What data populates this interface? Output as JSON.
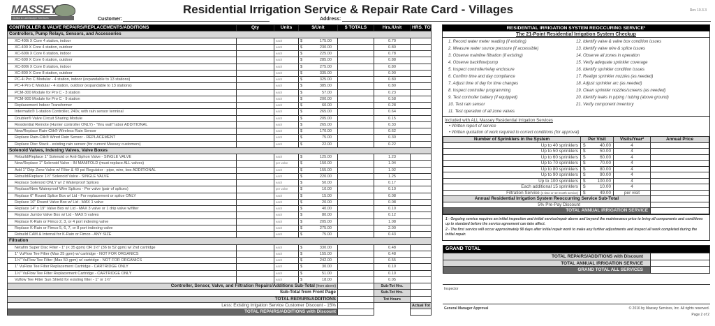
{
  "header": {
    "logo_text": "MASSEY",
    "logo_tagline": "Grass & Landscape Services",
    "title": "Residential Irrigation Service & Repair Rate Card - Villages",
    "revision": "Rev 10.3.3",
    "customer_label": "Customer:",
    "address_label": "Address:"
  },
  "repairs": {
    "columns": [
      "CONTROLLER & VALVE REPAIRS/REPLACEMENTS/ADDITIONS",
      "Qty",
      "Units",
      "$/Unit",
      "$ TOTALS",
      "Hrs./Unit",
      "HRS. TOTALS"
    ],
    "sections": [
      {
        "title": "Controllers, Pump Relays, Sensors, and Accessories",
        "items": [
          {
            "desc": "XC-400i  X Core 4 station, indoor",
            "units": "each",
            "price": "175.00",
            "hrs": "0.70"
          },
          {
            "desc": "XC-400  X Core 4 station, outdoor",
            "units": "each",
            "price": "230.00",
            "hrs": "0.80"
          },
          {
            "desc": "XC-600i  X Core 6 station, indoor",
            "units": "each",
            "price": "225.00",
            "hrs": "0.78"
          },
          {
            "desc": "XC-600  X Core 6 station, outdoor",
            "units": "each",
            "price": "285.00",
            "hrs": "0.88"
          },
          {
            "desc": "XC-800i  X Core 8 station, indoor",
            "units": "each",
            "price": "275.00",
            "hrs": "0.80"
          },
          {
            "desc": "XC-800  X Core 8 station, outdoor",
            "units": "each",
            "price": "335.00",
            "hrs": "0.90"
          },
          {
            "desc": "PC-4i Pro C Modular - 4 station, indoor (expandable to 13 stations)",
            "units": "each",
            "price": "325.00",
            "hrs": "0.80"
          },
          {
            "desc": "PC-4 Pro C Modular - 4 station, outdoor (expandable to 13 stations)",
            "units": "each",
            "price": "385.00",
            "hrs": "0.80"
          },
          {
            "desc": "PCM-300  Module for Pro C - 3 station",
            "units": "each",
            "price": "57.00",
            "hrs": "0.23"
          },
          {
            "desc": "PCM-900  Module for Pro C - 9 station",
            "units": "each",
            "price": "200.00",
            "hrs": "0.58"
          },
          {
            "desc": "Replacement Indoor Transformer",
            "units": "each",
            "price": "60.00",
            "hrs": "0.28"
          },
          {
            "desc": "Intermatic® 1-station Controller, 240v, with rain sensor terminal",
            "units": "each",
            "price": "265.00",
            "hrs": "0.64"
          },
          {
            "desc": "Doubler® Valve Circuit Sharing Module",
            "units": "each",
            "price": "205.00",
            "hrs": "0.15"
          },
          {
            "desc": "Residential Remote (Hunter controller ONLY) - \"thru wall\" labor ADDITIONAL",
            "units": "each",
            "price": "265.00",
            "hrs": "0.33"
          },
          {
            "desc": "New/Replace Rain-Clik® Wireless Rain Sensor",
            "units": "each",
            "price": "170.00",
            "hrs": "0.62"
          },
          {
            "desc": "Replace Rain-Clik® Wired Rain Sensor - REPLACEMENT",
            "units": "each",
            "price": "75.00",
            "hrs": "0.30"
          },
          {
            "desc": "Replace Disc Stack - existing rain sensor (for current Massey customers)",
            "units": "each",
            "price": "22.00",
            "hrs": "0.22"
          }
        ]
      },
      {
        "title": "Solenoid Valves, Indexing Valves, Valve Boxes",
        "items": [
          {
            "desc": "Rebuild/Replace 1\" Solenoid or Anti-Siphon Valve - SINGLE VALVE",
            "units": "each",
            "price": "125.00",
            "hrs": "1.23"
          },
          {
            "desc": "New/Replace 1\" Solenoid Valve - IN MANIFOLD (must replace ALL valves)",
            "units": "per valve",
            "price": "150.00",
            "hrs": "1.04"
          },
          {
            "desc": "Add 1\" Drip Zone Valve w/ Filter & 40 psi Regulator - pipe, wire, box ADDITIONAL",
            "units": "each",
            "price": "155.00",
            "hrs": "1.02"
          },
          {
            "desc": "Rebuild/Replace 1½\" Solenoid Valve - SINGLE VALVE",
            "units": "each",
            "price": "220.00",
            "hrs": "1.25"
          },
          {
            "desc": "Replace Solenoid ONLY w/ 2 Waterproof Splices",
            "units": "each",
            "price": "50.00",
            "hrs": "0.17"
          },
          {
            "desc": "Replace/New Waterproof Wire Splices - Per valve (pair of splices)",
            "units": "per valve",
            "price": "10.00",
            "hrs": "0.10"
          },
          {
            "desc": "Replace 6\" Round Splice Box w/ Lid - For replacement or splice ONLY",
            "units": "each",
            "price": "15.00",
            "hrs": "0.08"
          },
          {
            "desc": "Replace 10\" Round Valve Box w/ Lid - MAX 1 valve",
            "units": "each",
            "price": "20.00",
            "hrs": "0.08"
          },
          {
            "desc": "Replace 14\" x 19\" Valve Box w/ Lid - MAX 3 valve or 1 drip valve w/filter",
            "units": "each",
            "price": "40.00",
            "hrs": "0.10"
          },
          {
            "desc": "Replace Jumbo Valve Box w/ Lid - MAX 5 valves",
            "units": "each",
            "price": "80.00",
            "hrs": "0.12"
          },
          {
            "desc": "Replace K-Rain or Fimco 2, 3, or 4 port indexing valve",
            "units": "each",
            "price": "205.00",
            "hrs": "1.08"
          },
          {
            "desc": "Replace K-Rain or Fimco 5, 6, 7, or 8 port indexing valve",
            "units": "each",
            "price": "275.00",
            "hrs": "2.00"
          },
          {
            "desc": "Rebuild CAM & Internal for K-Rain or Fimco - ANY SIZE",
            "units": "each",
            "price": "75.00",
            "hrs": "0.43"
          }
        ]
      },
      {
        "title": "Filtration",
        "items": [
          {
            "desc": "Netafim Super Disc Filter - 1\" (< 35 gpm) OR 1½\" (36 to 52 gpm) w/ 2nd cartridge",
            "units": "each",
            "price": "330.00",
            "hrs": "0.48"
          },
          {
            "desc": "1\" VuFlow Tee Filter (Max 25 gpm) w/ cartridge - NOT FOR ORGANICS",
            "units": "each",
            "price": "155.00",
            "hrs": "0.48"
          },
          {
            "desc": "1½\" VuFlow Tee Filter (Max 50 gpm) w/ cartridge - NOT FOR ORGANICS",
            "units": "each",
            "price": "242.00",
            "hrs": "0.55"
          },
          {
            "desc": "1\" VuFlow Tee Filter Replacement Cartridge - CARTRIDGE ONLY",
            "units": "each",
            "price": "30.00",
            "hrs": "0.10"
          },
          {
            "desc": "1½\" VuFlow Tee Filter Replacement Cartridge - CARTRIDGE ONLY",
            "units": "each",
            "price": "51.00",
            "hrs": "0.10"
          },
          {
            "desc": "Vuflow Tee Filter Sun Shield for existing filter - 1\" or 1½\"",
            "units": "each",
            "price": "18.00",
            "hrs": "0.05"
          }
        ]
      }
    ],
    "currency": "$",
    "summary": [
      {
        "label": "Controller, Sensor, Valve, and Filtration Repairs/Additions Sub-Total",
        "note": "(from above)",
        "hours_label": "Sub-Tot Hrs.",
        "style": "gray"
      },
      {
        "label": "Sub-Total from Front Page",
        "hours_label": "Sub-Tot Hrs.",
        "style": "plain-bold"
      },
      {
        "label": "TOTAL REPAIRS/ADDITIONS",
        "hours_label": "Tot Hours",
        "style": "gray"
      },
      {
        "label": "Less: Existing Irrigation Service Customer Discount  - 15%",
        "hours_label": "Actual Tot Hrs.",
        "style": "plain"
      },
      {
        "label": "TOTAL REPAIRS/ADDITIONS with Discount",
        "style": "dark"
      }
    ]
  },
  "service": {
    "title": "RESIDENTIAL IRRIGATION SYSTEM REOCCURING SERVICE¹",
    "subtitle": "The 21-Point Residential Irrigation System Checkup",
    "checklist": [
      "1. Record water meter reading (if existing)",
      "2. Measure water source pressure (if accessible)",
      "3. Observe mainline filtration (if existing)",
      "4. Observe backflow/pump",
      "5. Inspect controller/relay enclosure",
      "6. Confirm time and day compliance",
      "7. Adjust time of day for time changes",
      "8. Inspect controller programming",
      "9. Test controller battery (if equipped)",
      "10. Test rain sensor",
      "11. Test operation of all zone valves",
      "12. Identify valve & valve box condition issues",
      "13. Identify valve wire & splice issues",
      "14.  Observe all zones in operation",
      "15. Verify adequate sprinkler coverage",
      "16. Identify sprinkler condition issues",
      "17. Realign sprinkler nozzles (as needed)",
      "18. Adjust sprinkler arc (as needed)",
      "19. Clean sprinkler nozzles/screens (as needed)",
      "20. Identify leaks in piping / tubing (above ground)",
      "21. Verify component inventory"
    ],
    "included_title": "Included with ALL Massey Residential Irrigation Services",
    "included_items": [
      "Written report of service",
      "Written quotation of work required to correct conditions (for approval)"
    ],
    "table_columns": [
      "Number of Sprinklers in the System",
      "Per Visit",
      "Visits/Year²",
      "Annual Price"
    ],
    "rows": [
      {
        "label": "Up to 40 sprinklers",
        "price": "40.00",
        "visits": "4"
      },
      {
        "label": "Up to 50 sprinklers",
        "price": "50.00",
        "visits": "4"
      },
      {
        "label": "Up to 60 sprinklers",
        "price": "60.00",
        "visits": "4"
      },
      {
        "label": "Up to 70 sprinklers",
        "price": "70.00",
        "visits": "4"
      },
      {
        "label": "Up to 80 sprinklers",
        "price": "80.00",
        "visits": "4"
      },
      {
        "label": "Up to 90 sprinklers",
        "price": "90.00",
        "visits": "4"
      },
      {
        "label": "Up to 100 sprinklers",
        "price": "100.00",
        "visits": "4"
      },
      {
        "label": "Each additional 15 sprinklers",
        "price": "10.00",
        "visits": "4"
      },
      {
        "label": "Filtration Service",
        "note": "(1 time or 12 month service)",
        "price": "49.00",
        "visits": "per visit"
      }
    ],
    "subtotal_label": "Annual Residential Irrigation System Reoccurring Service Sub-Total",
    "discount_label": "5% Pre-Pay Discount",
    "total_label": "TOTAL ANNUAL IRRIGATION SERVICE",
    "notes": [
      "1 - Ongoing service requires an initial inspection and initial service/repair above and beyond the maintenance price to bring all components and conditions up to standard before the service agreement can take affect.",
      "2 - The first service will occur approximately 90 days after initial repair work to make any further adjustments and inspect all work completed during the initial repair."
    ]
  },
  "grand_total": {
    "title": "GRAND TOTAL",
    "rows": [
      {
        "label": "TOTAL REPAIRS/ADDITIONS with Discount"
      },
      {
        "label": "TOTAL ANNUAL IRRIGATION SERVICE"
      },
      {
        "label": "GRAND TOTAL ALL SERVICES"
      }
    ]
  },
  "footer": {
    "inspector_label": "Inspector",
    "gm_label": "General Manager Approval",
    "copyright": "© 2016 by Massey Services, Inc.  All rights reserved.",
    "page": "Page 2 of 2"
  }
}
